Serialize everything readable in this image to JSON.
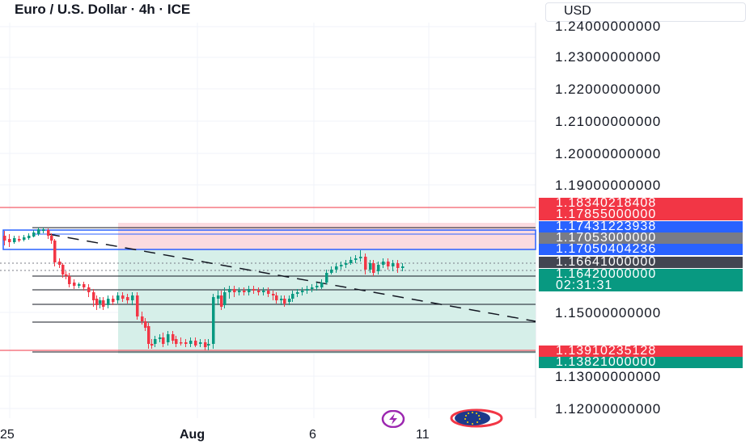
{
  "header": {
    "symbol_title": "Euro / U.S. Dollar · 4h · ICE",
    "currency": "USD"
  },
  "price_axis": {
    "ticks": [
      "1.24000000000",
      "1.23000000000",
      "1.22000000000",
      "1.21000000000",
      "1.20000000000",
      "1.19000000000",
      "1.15000000000",
      "1.13000000000",
      "1.12000000000"
    ]
  },
  "price_labels": [
    {
      "value": "1.18340218408",
      "color": "#f23645"
    },
    {
      "value": "1.17855000000",
      "color": "#f23645"
    },
    {
      "value": "1.17431223938",
      "color": "#2962ff"
    },
    {
      "value": "1.17053000000",
      "color": "#787b86"
    },
    {
      "value": "1.17050404236",
      "color": "#2962ff"
    },
    {
      "value": "1.16641000000",
      "color": "#434651"
    },
    {
      "value": "1.16420000000",
      "countdown": "02:31:31",
      "color": "#089981"
    },
    {
      "value": "1.13910235128",
      "color": "#f23645"
    },
    {
      "value": "1.13821000000",
      "color": "#089981"
    }
  ],
  "time_axis": {
    "ticks": [
      "25",
      "Aug",
      "6",
      "11"
    ]
  },
  "icons": {
    "lightning": "lightning-icon",
    "flag": "eu-flag-icon"
  },
  "colors": {
    "up": "#089981",
    "down": "#f23645",
    "target_zone": "#d6efe9",
    "stop_zone": "#fbdbe0"
  }
}
